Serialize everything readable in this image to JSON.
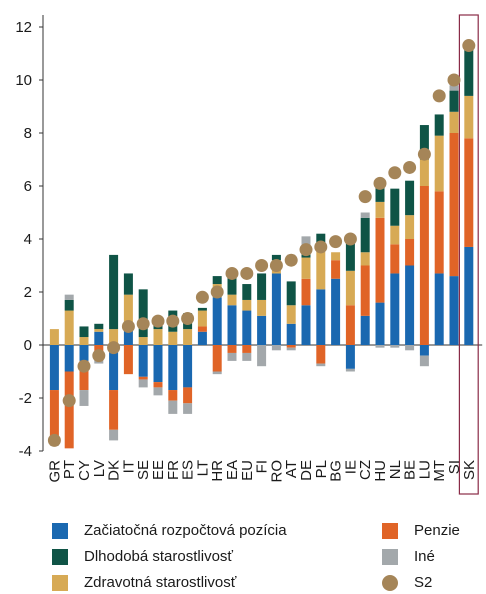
{
  "chart_data": {
    "type": "bar",
    "stacked": true,
    "title": "",
    "xlabel": "",
    "ylabel": "",
    "ylim": [
      -4,
      12
    ],
    "yticks": [
      -4,
      -2,
      0,
      2,
      4,
      6,
      8,
      10,
      12
    ],
    "grid": false,
    "legend_position": "bottom",
    "highlight_category": "SK",
    "categories": [
      "GR",
      "PT",
      "CY",
      "LV",
      "DK",
      "IT",
      "SE",
      "EE",
      "FR",
      "ES",
      "LT",
      "HR",
      "EA",
      "EU",
      "FI",
      "RO",
      "AT",
      "DE",
      "PL",
      "BG",
      "IE",
      "CZ",
      "HU",
      "NL",
      "BE",
      "LU",
      "MT",
      "SI",
      "SK"
    ],
    "series": [
      {
        "name": "Začiatočná rozpočtová pozícia",
        "color": "#1a68b0",
        "values": [
          -1.7,
          -1.0,
          -0.6,
          0.5,
          -1.7,
          0.6,
          -1.2,
          -1.4,
          -1.7,
          -1.6,
          0.5,
          1.8,
          1.5,
          1.3,
          1.1,
          2.7,
          0.8,
          1.5,
          2.1,
          2.5,
          -0.9,
          1.1,
          1.6,
          2.7,
          3.0,
          -0.4,
          2.7,
          2.6,
          3.7
        ]
      },
      {
        "name": "Penzie",
        "color": "#e06427",
        "values": [
          -1.8,
          -2.9,
          -1.1,
          -0.5,
          -1.5,
          -1.1,
          -0.1,
          -0.2,
          -0.4,
          -0.6,
          0.2,
          -1.0,
          -0.3,
          -0.3,
          0.0,
          0.0,
          -0.1,
          1.0,
          -0.7,
          0.7,
          1.5,
          1.9,
          3.2,
          1.1,
          1.0,
          6.0,
          3.1,
          5.4,
          4.1
        ]
      },
      {
        "name": "Zdravotná starostlivosť",
        "color": "#d7aa55",
        "values": [
          0.6,
          1.3,
          0.3,
          0.1,
          0.6,
          1.3,
          0.3,
          0.6,
          0.5,
          0.6,
          0.6,
          0.5,
          0.4,
          0.4,
          0.6,
          0.5,
          0.7,
          0.8,
          1.5,
          0.3,
          1.3,
          0.5,
          0.6,
          0.7,
          0.9,
          1.0,
          2.1,
          0.8,
          1.6
        ]
      },
      {
        "name": "Dlhodobá starostlivosť",
        "color": "#0f5446",
        "values": [
          0.0,
          0.4,
          0.4,
          0.2,
          2.8,
          0.8,
          1.8,
          0.3,
          0.8,
          0.6,
          0.1,
          0.3,
          0.7,
          0.6,
          1.0,
          0.2,
          0.9,
          0.3,
          0.6,
          0.0,
          1.1,
          1.3,
          0.8,
          1.4,
          1.3,
          1.3,
          0.8,
          0.8,
          1.8
        ]
      },
      {
        "name": "Iné",
        "color": "#a3a8ab",
        "values": [
          -0.3,
          0.2,
          -0.6,
          -0.2,
          -0.4,
          0.0,
          -0.3,
          -0.3,
          -0.5,
          -0.4,
          0.0,
          -0.1,
          -0.3,
          -0.3,
          -0.8,
          -0.2,
          -0.1,
          0.5,
          -0.1,
          0.0,
          -0.1,
          0.2,
          -0.1,
          -0.1,
          -0.2,
          -0.4,
          0.0,
          0.2,
          0.0
        ]
      }
    ],
    "s2": {
      "name": "S2",
      "color": "#a58558",
      "values": [
        -3.6,
        -2.1,
        -0.8,
        -0.4,
        -0.1,
        0.7,
        0.8,
        0.9,
        0.9,
        1.0,
        1.8,
        2.0,
        2.7,
        2.7,
        3.0,
        3.0,
        3.2,
        3.6,
        3.7,
        3.9,
        4.0,
        5.6,
        6.1,
        6.5,
        6.7,
        7.2,
        9.4,
        10.0,
        11.3
      ]
    }
  }
}
